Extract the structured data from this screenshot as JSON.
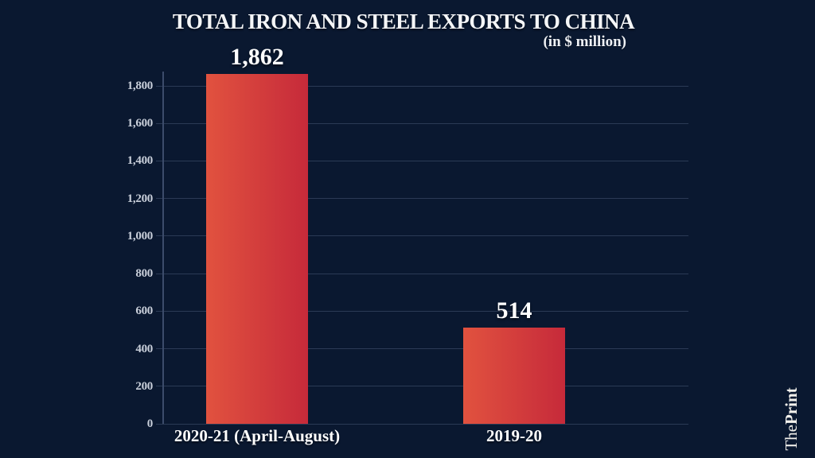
{
  "title": "TOTAL IRON AND STEEL EXPORTS TO CHINA",
  "subtitle": "(in $ million)",
  "watermark": {
    "brand_regular": "The",
    "brand_bold": "Print"
  },
  "colors": {
    "background": "#0a1830",
    "gridline": "#2b3a55",
    "axis_line": "#3c4c6b",
    "tick_label": "#c9cfda",
    "text": "#ffffff",
    "bar_gradient_left": "#e1523f",
    "bar_gradient_right": "#c62a3a"
  },
  "chart_data": {
    "type": "bar",
    "title": "TOTAL IRON AND STEEL EXPORTS TO CHINA",
    "subtitle": "(in $ million)",
    "categories": [
      "2020-21 (April-August)",
      "2019-20"
    ],
    "values": [
      1862,
      514
    ],
    "value_labels": [
      "1,862",
      "514"
    ],
    "unit": "$ million",
    "xlabel": "",
    "ylabel": "",
    "ylim": [
      0,
      1800
    ],
    "ytick_step": 200,
    "ytick_labels": [
      "0",
      "200",
      "400",
      "600",
      "800",
      "1,000",
      "1,200",
      "1,400",
      "1,600",
      "1,800"
    ],
    "grid": "horizontal",
    "legend": "none"
  }
}
